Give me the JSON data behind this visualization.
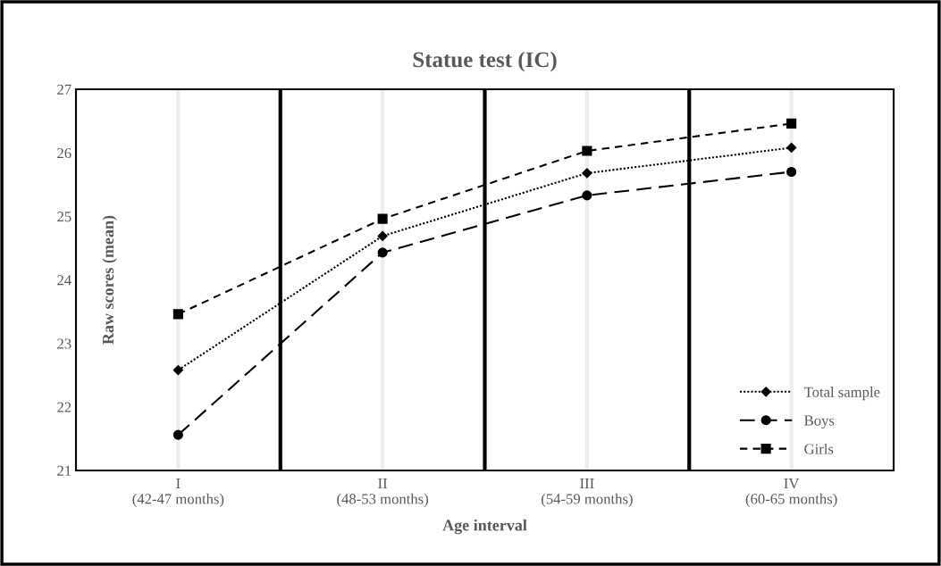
{
  "chart_data": {
    "type": "line",
    "title": "Statue test (IC)",
    "xlabel": "Age interval",
    "ylabel": "Raw scores (mean)",
    "categories": [
      "I\n(42-47 months)",
      "II\n(48-53 months)",
      "III\n(54-59 months)",
      "IV\n(60-65 months)"
    ],
    "series": [
      {
        "name": "Total sample",
        "color": "#000000",
        "values": [
          22.58,
          24.69,
          25.68,
          26.08
        ],
        "marker": "diamond",
        "line_style": "dotted"
      },
      {
        "name": "Boys",
        "color": "#000000",
        "values": [
          21.56,
          24.43,
          25.33,
          25.7
        ],
        "marker": "circle",
        "line_style": "dashed"
      },
      {
        "name": "Girls",
        "color": "#000000",
        "values": [
          23.46,
          24.96,
          26.03,
          26.46
        ],
        "marker": "square",
        "line_style": "dashed"
      }
    ],
    "ylim": [
      21,
      27
    ],
    "yticks": [
      21,
      22,
      23,
      24,
      25,
      26,
      27
    ],
    "grid": "x",
    "legend": "bottom right"
  }
}
